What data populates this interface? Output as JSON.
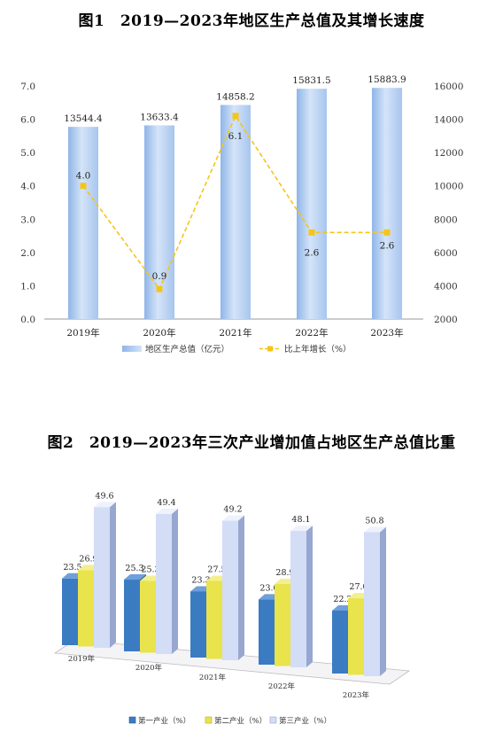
{
  "chart_data": [
    {
      "type": "bar",
      "title": "图1　2019—2023年地区生产总值及其增长速度",
      "categories": [
        "2019年",
        "2020年",
        "2021年",
        "2022年",
        "2023年"
      ],
      "series": [
        {
          "name": "地区生产总值（亿元）",
          "type": "bar",
          "axis": "right",
          "values": [
            13544.4,
            13633.4,
            14858.2,
            15831.5,
            15883.9
          ],
          "labels": [
            "13544.4",
            "13633.4",
            "14858.2",
            "15831.5",
            "15883.9"
          ]
        },
        {
          "name": "比上年增长（%）",
          "type": "line",
          "axis": "left",
          "values": [
            4.0,
            0.9,
            6.1,
            2.6,
            2.6
          ],
          "labels": [
            "4.0",
            "0.9",
            "6.1",
            "2.6",
            "2.6"
          ]
        }
      ],
      "y_left": {
        "min": 0,
        "max": 7,
        "ticks": [
          "0.0",
          "1.0",
          "2.0",
          "3.0",
          "4.0",
          "5.0",
          "6.0",
          "7.0"
        ]
      },
      "y_right": {
        "min": 2000,
        "max": 16000,
        "ticks": [
          "2000",
          "4000",
          "6000",
          "8000",
          "10000",
          "12000",
          "14000",
          "16000"
        ]
      },
      "legend_position": "bottom",
      "grid": false,
      "colors": {
        "bar": "#a9c8ef",
        "line": "#f5c518"
      }
    },
    {
      "type": "bar",
      "subtype": "3d-grouped",
      "title": "图2　2019—2023年三次产业增加值占地区生产总值比重",
      "categories": [
        "2019年",
        "2020年",
        "2021年",
        "2022年",
        "2023年"
      ],
      "series": [
        {
          "name": "第一产业（%）",
          "values": [
            23.5,
            25.3,
            23.3,
            23.0,
            22.2
          ],
          "labels": [
            "23.5",
            "25.3",
            "23.3",
            "23.0",
            "22.2"
          ]
        },
        {
          "name": "第二产业（%）",
          "values": [
            26.9,
            25.3,
            27.5,
            28.9,
            27.0
          ],
          "labels": [
            "26.9",
            "25.3",
            "27.5",
            "28.9",
            "27.0"
          ]
        },
        {
          "name": "第三产业（%）",
          "values": [
            49.6,
            49.4,
            49.2,
            48.1,
            50.8
          ],
          "labels": [
            "49.6",
            "49.4",
            "49.2",
            "48.1",
            "50.8"
          ]
        }
      ],
      "legend_position": "bottom",
      "grid": false,
      "colors": {
        "primary": "#3f7fc4",
        "secondary": "#e8e04a",
        "tertiary": "#cdd8f4"
      }
    }
  ]
}
